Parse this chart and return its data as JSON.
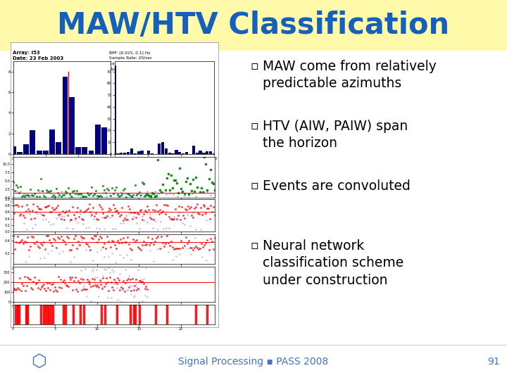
{
  "title": "MAW/HTV Classification",
  "title_color": "#1560BD",
  "title_bg_color": "#FFFAAA",
  "slide_bg_color": "#FFFFFF",
  "bullet_points": [
    "MAW come from relatively\npredictable azimuths",
    "HTV (AIW, PAIW) span\nthe horizon",
    "Events are convoluted",
    "Neural network\nclassification scheme\nunder construction"
  ],
  "bullet_color": "#000000",
  "bullet_fontsize": 13.5,
  "footer_text": "Signal Processing ▪ PASS 2008",
  "footer_number": "91",
  "footer_color": "#4472C4",
  "footer_fontsize": 10
}
